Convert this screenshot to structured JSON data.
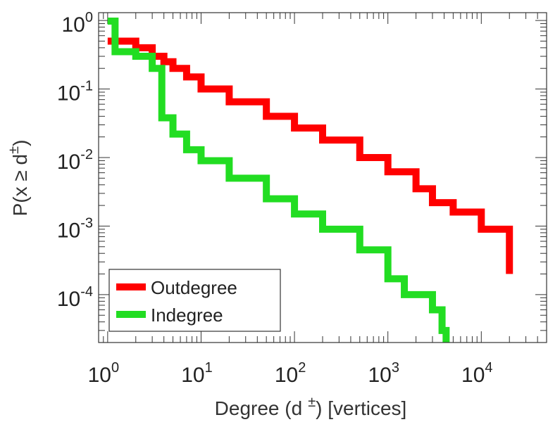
{
  "chart_data": {
    "type": "line",
    "scale": "log-log",
    "xlabel": "Degree (d ±) [vertices]",
    "xlabel_parts": {
      "prefix": "Degree (d",
      "sup": "±",
      "suffix": ") [vertices]"
    },
    "ylabel": "P(x ≥ d±)",
    "ylabel_parts": {
      "main": "P(x ≥ d",
      "sup": "±",
      "close": ")"
    },
    "xlim": [
      0.8,
      50000
    ],
    "ylim": [
      2e-05,
      1.3
    ],
    "x_ticks": [
      {
        "base": "10",
        "exp": "0"
      },
      {
        "base": "10",
        "exp": "1"
      },
      {
        "base": "10",
        "exp": "2"
      },
      {
        "base": "10",
        "exp": "3"
      },
      {
        "base": "10",
        "exp": "4"
      }
    ],
    "y_ticks": [
      {
        "base": "10",
        "exp": "0"
      },
      {
        "base": "10",
        "exp": "-1"
      },
      {
        "base": "10",
        "exp": "-2"
      },
      {
        "base": "10",
        "exp": "-3"
      },
      {
        "base": "10",
        "exp": "-4"
      }
    ],
    "legend": {
      "position": "bottom-left",
      "entries": [
        "Outdegree",
        "Indegree"
      ]
    },
    "series": [
      {
        "name": "Outdegree",
        "color": "#ff0000",
        "x": [
          1,
          2,
          3,
          4,
          5,
          7,
          10,
          20,
          50,
          100,
          200,
          500,
          1000,
          2000,
          3000,
          5000,
          10000,
          20000
        ],
        "y": [
          0.5,
          0.4,
          0.3,
          0.25,
          0.2,
          0.15,
          0.1,
          0.065,
          0.04,
          0.027,
          0.018,
          0.01,
          0.0062,
          0.0035,
          0.0022,
          0.0016,
          0.0009,
          0.0002
        ]
      },
      {
        "name": "Indegree",
        "color": "#22dd22",
        "x": [
          1,
          1.2,
          2,
          3,
          3.8,
          5,
          7,
          10,
          20,
          50,
          100,
          200,
          500,
          1000,
          1500,
          3000,
          3800,
          4200
        ],
        "y": [
          0.98,
          0.35,
          0.3,
          0.2,
          0.038,
          0.022,
          0.013,
          0.009,
          0.005,
          0.0025,
          0.0015,
          0.0009,
          0.00045,
          0.00017,
          0.0001,
          6e-05,
          3e-05,
          2e-05
        ]
      }
    ]
  }
}
